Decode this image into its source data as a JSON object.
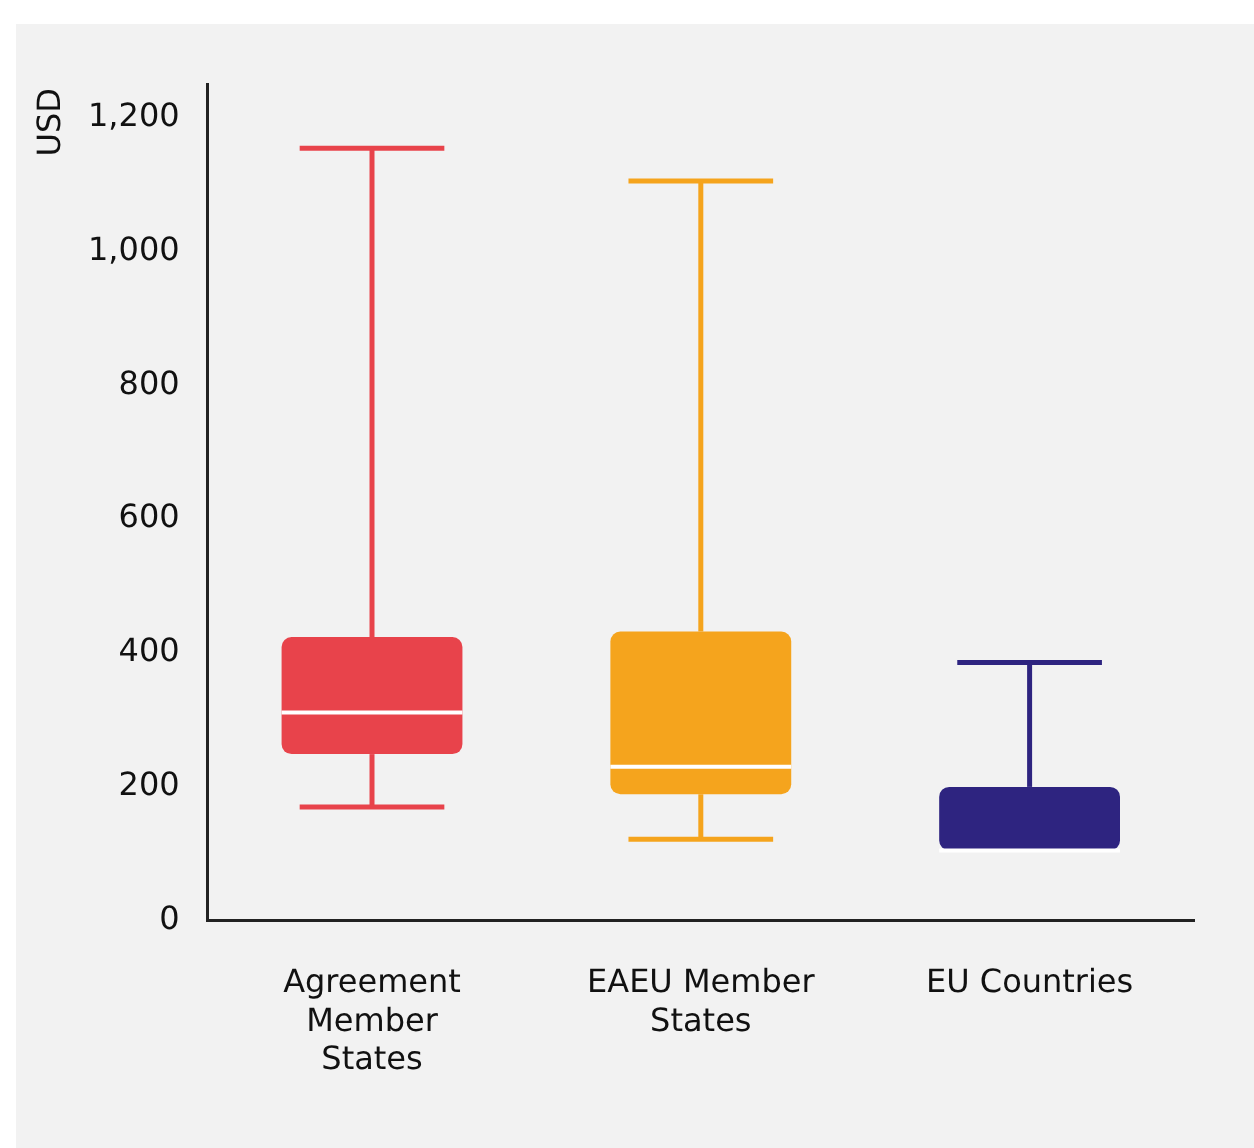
{
  "chart_data": {
    "type": "box",
    "ylabel": "USD",
    "categories": [
      "Agreement Member States",
      "EAEU Member States",
      "EU Countries"
    ],
    "colors": [
      "#e8434b",
      "#f5a41d",
      "#2e2480"
    ],
    "boxes": [
      {
        "low": 170,
        "q1": 249,
        "median": 311,
        "q3": 424,
        "high": 1154
      },
      {
        "low": 122,
        "q1": 189,
        "median": 230,
        "q3": 432,
        "high": 1105
      },
      {
        "low": 105,
        "q1": 105,
        "median": 105,
        "q3": 200,
        "high": 386
      }
    ],
    "ylim": [
      0,
      1250
    ],
    "yticks": [
      0,
      200,
      400,
      600,
      800,
      {
        "value": 1000,
        "label": "1,000"
      },
      {
        "value": 1200,
        "label": "1,200"
      }
    ],
    "grid": false,
    "legend": false
  }
}
